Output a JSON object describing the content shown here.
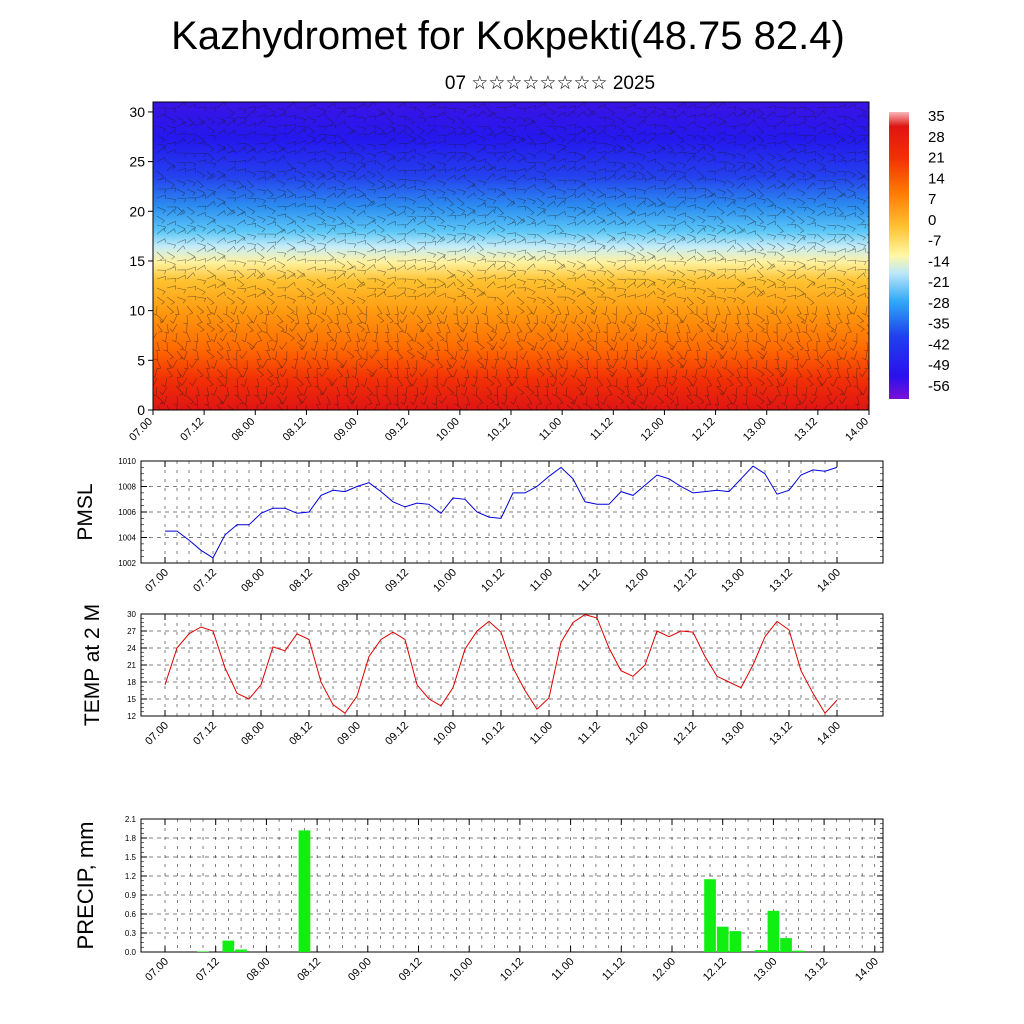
{
  "title": "Kazhydromet for Kokpekti(48.75 82.4)",
  "subtitle": "07 ☆☆☆☆☆☆☆☆ 2025",
  "chart_data": [
    {
      "type": "heatmap",
      "id": "upper-air",
      "ylim": [
        0,
        31
      ],
      "yticks": [
        "0",
        "5",
        "10",
        "15",
        "20",
        "25",
        "30"
      ],
      "xtick_labels": [
        "07.00",
        "07.12",
        "08.00",
        "08.12",
        "09.00",
        "09.12",
        "10.00",
        "10.12",
        "11.00",
        "11.12",
        "12.00",
        "12.12",
        "13.00",
        "13.12",
        "14.00"
      ],
      "colorbar_labels": [
        "35",
        "28",
        "21",
        "14",
        "7",
        "0",
        "-7",
        "-14",
        "-21",
        "-28",
        "-35",
        "-42",
        "-49",
        "-56"
      ],
      "colorbar_range": [
        -63,
        42
      ],
      "colors": [
        "#7a10d8",
        "#1a18ee",
        "#2c6ef0",
        "#30b8f6",
        "#b6e4f8",
        "#fff8a6",
        "#ffc230",
        "#ff7a00",
        "#f23006",
        "#e01414",
        "#f6b8b8"
      ],
      "has_wind_barbs": true
    },
    {
      "type": "line",
      "id": "pmsl",
      "ylabel": "PMSL",
      "ylim": [
        1002,
        1010
      ],
      "yticks": [
        "1002",
        "1004",
        "1006",
        "1008",
        "1010"
      ],
      "xtick_labels": [
        "07.00",
        "07.12",
        "08.00",
        "08.12",
        "09.00",
        "09.12",
        "10.00",
        "10.12",
        "11.00",
        "11.12",
        "12.00",
        "12.12",
        "13.00",
        "13.12",
        "14.00"
      ],
      "line_color": "#0000dd",
      "x_step_hours": 3,
      "values": [
        1004.5,
        1004.5,
        1003.8,
        1003.0,
        1002.4,
        1004.2,
        1005.0,
        1005.0,
        1005.9,
        1006.3,
        1006.3,
        1005.9,
        1006.0,
        1007.3,
        1007.7,
        1007.6,
        1008.0,
        1008.3,
        1007.6,
        1006.8,
        1006.4,
        1006.7,
        1006.6,
        1005.9,
        1007.1,
        1007.0,
        1006.0,
        1005.6,
        1005.5,
        1007.5,
        1007.5,
        1008.0,
        1008.8,
        1009.5,
        1008.6,
        1006.8,
        1006.6,
        1006.6,
        1007.6,
        1007.3,
        1008.1,
        1008.9,
        1008.6,
        1008.0,
        1007.5,
        1007.6,
        1007.7,
        1007.6,
        1008.6,
        1009.6,
        1009.0,
        1007.4,
        1007.7,
        1008.9,
        1009.3,
        1009.2,
        1009.5
      ]
    },
    {
      "type": "line",
      "id": "temp2m",
      "ylabel": "TEMP at 2 M",
      "ylim": [
        12,
        30
      ],
      "yticks": [
        "12",
        "15",
        "18",
        "21",
        "24",
        "27",
        "30"
      ],
      "xtick_labels": [
        "07.00",
        "07.12",
        "08.00",
        "08.12",
        "09.00",
        "09.12",
        "10.00",
        "10.12",
        "11.00",
        "11.12",
        "12.00",
        "12.12",
        "13.00",
        "13.12",
        "14.00"
      ],
      "line_color": "#dd0000",
      "x_step_hours": 3,
      "values": [
        17.5,
        24.0,
        26.5,
        27.7,
        27.0,
        20.5,
        16.0,
        15.0,
        17.5,
        24.2,
        23.5,
        26.5,
        25.5,
        18.0,
        14.0,
        12.5,
        15.5,
        22.5,
        25.5,
        26.8,
        25.5,
        17.5,
        15.0,
        13.8,
        17.0,
        23.8,
        27.0,
        28.7,
        26.8,
        20.5,
        16.5,
        13.2,
        15.2,
        25.0,
        28.5,
        29.9,
        29.3,
        24.0,
        20.0,
        19.0,
        21.0,
        27.0,
        26.0,
        27.0,
        26.8,
        22.5,
        19.0,
        18.0,
        17.0,
        21.0,
        26.0,
        28.7,
        27.2,
        20.0,
        16.0,
        12.5,
        14.8
      ]
    },
    {
      "type": "bar",
      "id": "precip",
      "ylabel": "PRECIP, mm",
      "ylim": [
        0,
        2.1
      ],
      "yticks": [
        "0.0",
        "0.3",
        "0.6",
        "0.9",
        "1.2",
        "1.5",
        "1.8",
        "2.1"
      ],
      "xtick_labels": [
        "07.00",
        "07.12",
        "08.00",
        "08.12",
        "09.00",
        "09.12",
        "10.00",
        "10.12",
        "11.00",
        "11.12",
        "12.00",
        "12.12",
        "13.00",
        "13.12",
        "14.00"
      ],
      "bar_color": "#11ee11",
      "x_step_hours": 3,
      "values": [
        0,
        0,
        0,
        0.01,
        0,
        0.18,
        0.04,
        0,
        0,
        0,
        0,
        1.92,
        0,
        0,
        0,
        0,
        0,
        0,
        0,
        0,
        0,
        0,
        0,
        0,
        0,
        0,
        0,
        0,
        0,
        0,
        0,
        0,
        0,
        0,
        0,
        0,
        0,
        0,
        0,
        0,
        0,
        0,
        0,
        1.15,
        0.4,
        0.33,
        0,
        0.03,
        0.65,
        0.22,
        0.02,
        0,
        0,
        0,
        0,
        0
      ]
    }
  ]
}
